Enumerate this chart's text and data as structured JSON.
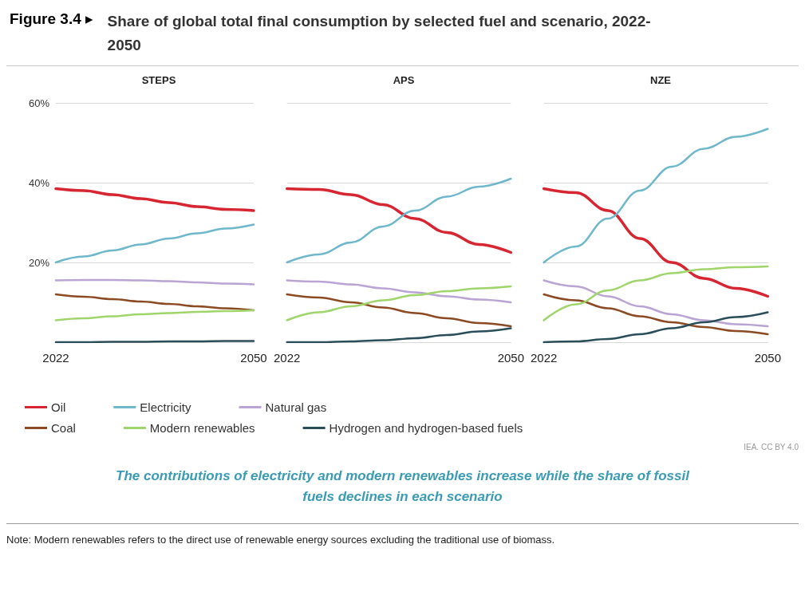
{
  "chart_data": [
    {
      "type": "line",
      "title": "STEPS",
      "categories": [
        "2022",
        null,
        null,
        null,
        null,
        null,
        null,
        "2050"
      ],
      "ylim": [
        0,
        60
      ],
      "yticks": [
        {
          "value": 20,
          "label": "20%"
        },
        {
          "value": 40,
          "label": "40%"
        },
        {
          "value": 60,
          "label": "60%"
        }
      ],
      "grid": "y",
      "marker": "none",
      "line_style": "solid",
      "legend": "bottom",
      "annotations": [
        "Figure 3.4 ▸",
        "Share of global total final consumption by selected fuel and scenario, 2022-2050",
        "IEA. CC BY 4.0",
        "The contributions of electricity and modern renewables increase while the share of fossil fuels declines in each scenario",
        "Note: Modern renewables refers to the direct use of renewable energy sources excluding the traditional use of biomass."
      ],
      "series": [
        {
          "name": "Oil",
          "color": "#d62631",
          "values": [
            38.5,
            38,
            37,
            36,
            35,
            34,
            33.3,
            33
          ]
        },
        {
          "name": "Electricity",
          "color": "#6fb8cc",
          "values": [
            20,
            21.5,
            23,
            24.5,
            26,
            27.3,
            28.5,
            29.5
          ]
        },
        {
          "name": "Natural gas",
          "color": "#b9a4d4",
          "values": [
            15.5,
            15.6,
            15.6,
            15.5,
            15.3,
            15,
            14.7,
            14.5
          ]
        },
        {
          "name": "Coal",
          "color": "#8b4a22",
          "values": [
            12,
            11.4,
            10.8,
            10.2,
            9.6,
            9,
            8.5,
            8
          ]
        },
        {
          "name": "Modern renewables",
          "color": "#9fd56a",
          "values": [
            5.5,
            6,
            6.5,
            7,
            7.3,
            7.6,
            7.8,
            8
          ]
        },
        {
          "name": "Hydrogen and hydrogen-based fuels",
          "color": "#2a4e59",
          "values": [
            0,
            0,
            0.1,
            0.1,
            0.2,
            0.2,
            0.3,
            0.3
          ]
        }
      ]
    },
    {
      "type": "line",
      "title": "APS",
      "categories": [
        "2022",
        null,
        null,
        null,
        null,
        null,
        null,
        "2050"
      ],
      "ylim": [
        0,
        60
      ],
      "yticks": [
        20,
        40,
        60
      ],
      "grid": "y",
      "marker": "none",
      "line_style": "solid",
      "tick_labels": "x",
      "series": [
        {
          "color": "#d62631",
          "values": [
            38.5,
            38.3,
            37,
            34.5,
            31,
            27.5,
            24.5,
            22.5
          ]
        },
        {
          "color": "#6fb8cc",
          "values": [
            20,
            22,
            25,
            29,
            33,
            36.5,
            39,
            41
          ]
        },
        {
          "color": "#b9a4d4",
          "values": [
            15.5,
            15.2,
            14.5,
            13.5,
            12.5,
            11.5,
            10.7,
            10
          ]
        },
        {
          "color": "#8b4a22",
          "values": [
            12,
            11.2,
            10,
            8.7,
            7.3,
            6,
            4.8,
            4
          ]
        },
        {
          "color": "#9fd56a",
          "values": [
            5.5,
            7.5,
            9,
            10.5,
            11.8,
            12.8,
            13.5,
            14
          ]
        },
        {
          "color": "#2a4e59",
          "values": [
            0,
            0,
            0.2,
            0.5,
            1,
            1.8,
            2.7,
            3.5
          ]
        }
      ]
    },
    {
      "type": "line",
      "title": "NZE",
      "categories": [
        "2022",
        null,
        null,
        null,
        null,
        null,
        null,
        "2050"
      ],
      "ylim": [
        0,
        60
      ],
      "yticks": [
        20,
        40,
        60
      ],
      "grid": "y",
      "marker": "none",
      "line_style": "solid",
      "tick_labels": "x",
      "series": [
        {
          "color": "#d62631",
          "values": [
            38.5,
            37.5,
            33,
            26,
            20,
            16,
            13.5,
            11.5
          ]
        },
        {
          "color": "#6fb8cc",
          "values": [
            20,
            24,
            31,
            38,
            44,
            48.5,
            51.5,
            53.5
          ]
        },
        {
          "color": "#b9a4d4",
          "values": [
            15.5,
            14,
            11.5,
            9,
            7,
            5.5,
            4.5,
            4
          ]
        },
        {
          "color": "#8b4a22",
          "values": [
            12,
            10.5,
            8.5,
            6.5,
            5,
            3.8,
            2.8,
            2
          ]
        },
        {
          "color": "#9fd56a",
          "values": [
            5.5,
            9.5,
            13,
            15.5,
            17.3,
            18.3,
            18.8,
            19
          ]
        },
        {
          "color": "#2a4e59",
          "values": [
            0,
            0.2,
            0.8,
            2,
            3.5,
            5,
            6.3,
            7.5
          ]
        }
      ]
    }
  ]
}
